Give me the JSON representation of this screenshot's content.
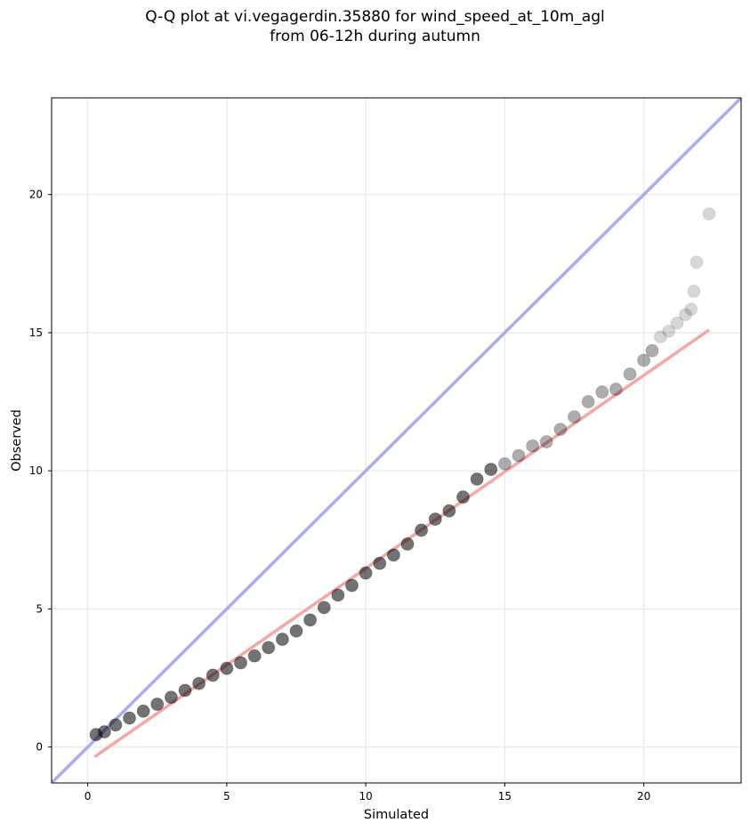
{
  "title_lines": [
    "Q-Q plot at vi.vegagerdin.35880 for wind_speed_at_10m_agl",
    "from 06-12h during autumn"
  ],
  "chart_data": {
    "type": "scatter",
    "title": "Q-Q plot at vi.vegagerdin.35880 for wind_speed_at_10m_agl\nfrom 06-12h during autumn",
    "xlabel": "Simulated",
    "ylabel": "Observed",
    "xlim": [
      -1.3,
      23.5
    ],
    "ylim": [
      -1.3,
      23.5
    ],
    "xticks": [
      0,
      5,
      10,
      15,
      20
    ],
    "yticks": [
      0,
      5,
      10,
      15,
      20
    ],
    "grid": true,
    "colors": {
      "points": "#000000",
      "identity_line": "#a8acf2",
      "fit_line": "#f4a7a7",
      "grid": "#ebebeb"
    },
    "reference_lines": [
      {
        "kind": "identity",
        "x": [
          -1.3,
          23.5
        ],
        "y": [
          -1.3,
          23.5
        ]
      },
      {
        "kind": "linear-fit",
        "x": [
          0.25,
          22.35
        ],
        "y": [
          -0.35,
          15.1
        ]
      }
    ],
    "quantiles": {
      "x": [
        0.3,
        0.6,
        1.0,
        1.5,
        2.0,
        2.5,
        3.0,
        3.5,
        4.0,
        4.5,
        5.0,
        5.5,
        6.0,
        6.5,
        7.0,
        7.5,
        8.0,
        8.5,
        9.0,
        9.5,
        10.0,
        10.5,
        11.0,
        11.5,
        12.0,
        12.5,
        13.0,
        13.5,
        14.0,
        14.5,
        15.0,
        15.5,
        16.0,
        16.5,
        17.0,
        17.5,
        18.0,
        18.5,
        19.0,
        19.5,
        20.0,
        20.3,
        20.6,
        20.9,
        21.2,
        21.5,
        21.7,
        21.8,
        21.9,
        22.35
      ],
      "y": [
        0.45,
        0.55,
        0.8,
        1.05,
        1.3,
        1.55,
        1.8,
        2.05,
        2.3,
        2.6,
        2.85,
        3.05,
        3.3,
        3.6,
        3.9,
        4.2,
        4.6,
        5.05,
        5.5,
        5.85,
        6.3,
        6.65,
        6.95,
        7.35,
        7.85,
        8.25,
        8.55,
        9.05,
        9.7,
        10.05,
        10.25,
        10.55,
        10.9,
        11.05,
        11.5,
        11.95,
        12.5,
        12.85,
        12.95,
        13.5,
        14.0,
        14.35,
        14.85,
        15.05,
        15.35,
        15.65,
        15.85,
        16.5,
        17.55,
        19.3
      ]
    }
  }
}
